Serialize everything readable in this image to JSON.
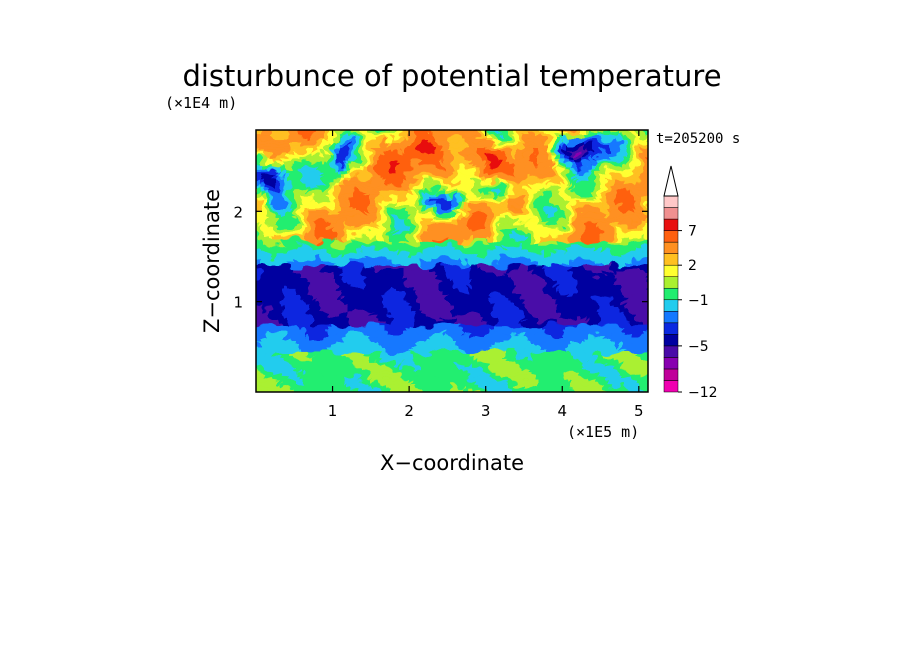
{
  "chart_data": {
    "type": "heatmap",
    "title": "disturbunce of potential temperature",
    "time_label": "t=205200 s",
    "xlabel": "X−coordinate",
    "ylabel": "Z−coordinate",
    "x_unit": "(×1E5 m)",
    "y_unit": "(×1E4 m)",
    "xlim": [
      0,
      5.12
    ],
    "ylim": [
      0,
      2.9
    ],
    "x_ticks": [
      "1",
      "2",
      "3",
      "4",
      "5"
    ],
    "y_ticks": [
      "1",
      "2"
    ],
    "colorbar": {
      "tick_labels": [
        "−12",
        "−5",
        "−1",
        "2",
        "7"
      ],
      "levels": [
        -12,
        -10,
        -8,
        -6,
        -5,
        -4,
        -3,
        -2,
        -1,
        0,
        1,
        2,
        3,
        5,
        7,
        9,
        11
      ],
      "colors": [
        "#f000b0",
        "#c0009a",
        "#8800b0",
        "#4a0aa8",
        "#0000a0",
        "#0a28e0",
        "#1478ff",
        "#22ccee",
        "#22ee70",
        "#aaf030",
        "#ffff30",
        "#ffc020",
        "#ff9020",
        "#ff6010",
        "#e81010",
        "#f09090",
        "#ffc8c8"
      ],
      "extend": "max"
    },
    "structure": [
      {
        "z_range": [
          0,
          0.45
        ],
        "value_range": [
          -2,
          1
        ],
        "note": "lower layer green/cyan with yellow patches"
      },
      {
        "z_range": [
          0.45,
          0.75
        ],
        "value_range": [
          -3,
          -1
        ],
        "note": "cyan/blue transition"
      },
      {
        "z_range": [
          0.75,
          1.4
        ],
        "value_range": [
          -6,
          -4
        ],
        "note": "deep blue band"
      },
      {
        "z_range": [
          1.4,
          1.65
        ],
        "value_range": [
          -2,
          0
        ],
        "note": "cyan/green transition"
      },
      {
        "z_range": [
          1.65,
          2.9
        ],
        "value_range": [
          -6,
          8
        ],
        "note": "upper wave layer, yellow/orange with red maximum near x=3.0, blue wave crests"
      }
    ]
  }
}
